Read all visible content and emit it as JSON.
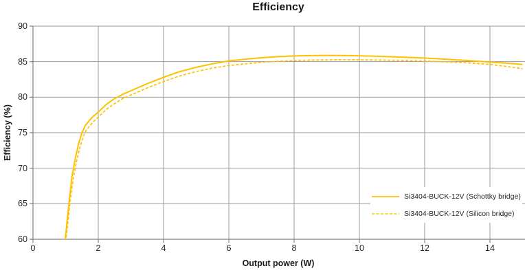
{
  "chart_data": {
    "type": "line",
    "title": "Efficiency",
    "xlabel": "Output power (W)",
    "ylabel": "Efficiency (%)",
    "xlim": [
      0,
      15
    ],
    "ylim": [
      60,
      90
    ],
    "x_ticks": [
      0,
      2,
      4,
      6,
      8,
      10,
      12,
      14
    ],
    "y_ticks": [
      60,
      65,
      70,
      75,
      80,
      85,
      90
    ],
    "grid": true,
    "legend_position": "inside-bottom-right",
    "series": [
      {
        "name": "Si3404-BUCK-12V (Schottky bridge)",
        "style": "solid",
        "color": "#FFC000",
        "points": [
          [
            0.99,
            59.0
          ],
          [
            1.0,
            60.5
          ],
          [
            1.05,
            62.8
          ],
          [
            1.1,
            65.0
          ],
          [
            1.15,
            67.0
          ],
          [
            1.2,
            69.0
          ],
          [
            1.3,
            71.5
          ],
          [
            1.4,
            73.5
          ],
          [
            1.5,
            75.0
          ],
          [
            1.6,
            76.0
          ],
          [
            1.8,
            77.1
          ],
          [
            2.0,
            77.9
          ],
          [
            2.25,
            79.0
          ],
          [
            2.5,
            79.8
          ],
          [
            2.75,
            80.4
          ],
          [
            3.0,
            80.9
          ],
          [
            3.5,
            81.9
          ],
          [
            4.0,
            82.8
          ],
          [
            4.5,
            83.6
          ],
          [
            5.0,
            84.2
          ],
          [
            5.5,
            84.7
          ],
          [
            6.0,
            85.1
          ],
          [
            6.5,
            85.35
          ],
          [
            7.0,
            85.55
          ],
          [
            7.5,
            85.7
          ],
          [
            8.0,
            85.8
          ],
          [
            8.5,
            85.85
          ],
          [
            9.0,
            85.88
          ],
          [
            9.5,
            85.87
          ],
          [
            10.0,
            85.82
          ],
          [
            10.5,
            85.76
          ],
          [
            11.0,
            85.68
          ],
          [
            11.5,
            85.6
          ],
          [
            12.0,
            85.5
          ],
          [
            12.5,
            85.38
          ],
          [
            13.0,
            85.25
          ],
          [
            13.5,
            85.1
          ],
          [
            14.0,
            84.95
          ],
          [
            14.5,
            84.78
          ],
          [
            15.0,
            84.6
          ]
        ]
      },
      {
        "name": "Si3404-BUCK-12V (Silicon bridge)",
        "style": "dashed",
        "color": "#FFC000",
        "points": [
          [
            1.0,
            59.0
          ],
          [
            1.02,
            60.5
          ],
          [
            1.08,
            62.8
          ],
          [
            1.13,
            65.0
          ],
          [
            1.18,
            66.8
          ],
          [
            1.24,
            68.7
          ],
          [
            1.34,
            71.1
          ],
          [
            1.44,
            73.0
          ],
          [
            1.54,
            74.5
          ],
          [
            1.64,
            75.4
          ],
          [
            1.84,
            76.5
          ],
          [
            2.0,
            77.2
          ],
          [
            2.25,
            78.3
          ],
          [
            2.5,
            79.1
          ],
          [
            2.75,
            79.8
          ],
          [
            3.0,
            80.3
          ],
          [
            3.5,
            81.3
          ],
          [
            4.0,
            82.2
          ],
          [
            4.5,
            83.0
          ],
          [
            5.0,
            83.6
          ],
          [
            5.5,
            84.1
          ],
          [
            6.0,
            84.45
          ],
          [
            6.5,
            84.7
          ],
          [
            7.0,
            84.9
          ],
          [
            7.5,
            85.05
          ],
          [
            8.0,
            85.15
          ],
          [
            8.5,
            85.21
          ],
          [
            9.0,
            85.26
          ],
          [
            9.5,
            85.28
          ],
          [
            10.0,
            85.27
          ],
          [
            10.5,
            85.24
          ],
          [
            11.0,
            85.2
          ],
          [
            11.5,
            85.15
          ],
          [
            12.0,
            85.08
          ],
          [
            12.5,
            85.0
          ],
          [
            13.0,
            84.9
          ],
          [
            13.5,
            84.77
          ],
          [
            14.0,
            84.6
          ],
          [
            14.5,
            84.33
          ],
          [
            15.0,
            84.0
          ]
        ]
      }
    ],
    "colors": {
      "accent": "#FFC000",
      "gridline": "#999999",
      "axis": "#808080",
      "text": "#262626"
    }
  }
}
